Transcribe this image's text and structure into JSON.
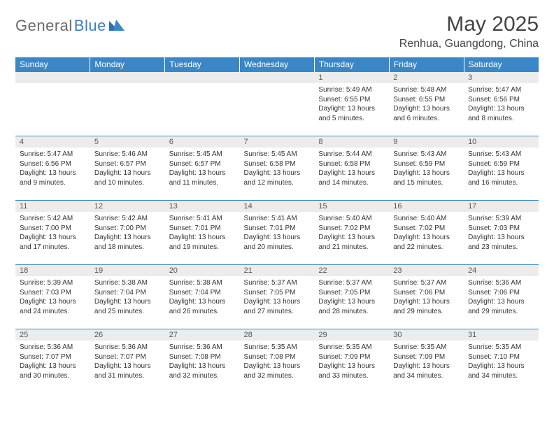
{
  "logo": {
    "general": "General",
    "blue": "Blue"
  },
  "title": "May 2025",
  "location": "Renhua, Guangdong, China",
  "colors": {
    "header_bg": "#3a87c8",
    "header_text": "#ffffff",
    "daynum_bg": "#ececec",
    "border": "#3a87c8",
    "logo_gray": "#6a6a6a",
    "logo_blue": "#3a7fc4"
  },
  "weekdays": [
    "Sunday",
    "Monday",
    "Tuesday",
    "Wednesday",
    "Thursday",
    "Friday",
    "Saturday"
  ],
  "weeks": [
    [
      {
        "n": "",
        "sr": "",
        "ss": "",
        "dl": ""
      },
      {
        "n": "",
        "sr": "",
        "ss": "",
        "dl": ""
      },
      {
        "n": "",
        "sr": "",
        "ss": "",
        "dl": ""
      },
      {
        "n": "",
        "sr": "",
        "ss": "",
        "dl": ""
      },
      {
        "n": "1",
        "sr": "Sunrise: 5:49 AM",
        "ss": "Sunset: 6:55 PM",
        "dl": "Daylight: 13 hours and 5 minutes."
      },
      {
        "n": "2",
        "sr": "Sunrise: 5:48 AM",
        "ss": "Sunset: 6:55 PM",
        "dl": "Daylight: 13 hours and 6 minutes."
      },
      {
        "n": "3",
        "sr": "Sunrise: 5:47 AM",
        "ss": "Sunset: 6:56 PM",
        "dl": "Daylight: 13 hours and 8 minutes."
      }
    ],
    [
      {
        "n": "4",
        "sr": "Sunrise: 5:47 AM",
        "ss": "Sunset: 6:56 PM",
        "dl": "Daylight: 13 hours and 9 minutes."
      },
      {
        "n": "5",
        "sr": "Sunrise: 5:46 AM",
        "ss": "Sunset: 6:57 PM",
        "dl": "Daylight: 13 hours and 10 minutes."
      },
      {
        "n": "6",
        "sr": "Sunrise: 5:45 AM",
        "ss": "Sunset: 6:57 PM",
        "dl": "Daylight: 13 hours and 11 minutes."
      },
      {
        "n": "7",
        "sr": "Sunrise: 5:45 AM",
        "ss": "Sunset: 6:58 PM",
        "dl": "Daylight: 13 hours and 12 minutes."
      },
      {
        "n": "8",
        "sr": "Sunrise: 5:44 AM",
        "ss": "Sunset: 6:58 PM",
        "dl": "Daylight: 13 hours and 14 minutes."
      },
      {
        "n": "9",
        "sr": "Sunrise: 5:43 AM",
        "ss": "Sunset: 6:59 PM",
        "dl": "Daylight: 13 hours and 15 minutes."
      },
      {
        "n": "10",
        "sr": "Sunrise: 5:43 AM",
        "ss": "Sunset: 6:59 PM",
        "dl": "Daylight: 13 hours and 16 minutes."
      }
    ],
    [
      {
        "n": "11",
        "sr": "Sunrise: 5:42 AM",
        "ss": "Sunset: 7:00 PM",
        "dl": "Daylight: 13 hours and 17 minutes."
      },
      {
        "n": "12",
        "sr": "Sunrise: 5:42 AM",
        "ss": "Sunset: 7:00 PM",
        "dl": "Daylight: 13 hours and 18 minutes."
      },
      {
        "n": "13",
        "sr": "Sunrise: 5:41 AM",
        "ss": "Sunset: 7:01 PM",
        "dl": "Daylight: 13 hours and 19 minutes."
      },
      {
        "n": "14",
        "sr": "Sunrise: 5:41 AM",
        "ss": "Sunset: 7:01 PM",
        "dl": "Daylight: 13 hours and 20 minutes."
      },
      {
        "n": "15",
        "sr": "Sunrise: 5:40 AM",
        "ss": "Sunset: 7:02 PM",
        "dl": "Daylight: 13 hours and 21 minutes."
      },
      {
        "n": "16",
        "sr": "Sunrise: 5:40 AM",
        "ss": "Sunset: 7:02 PM",
        "dl": "Daylight: 13 hours and 22 minutes."
      },
      {
        "n": "17",
        "sr": "Sunrise: 5:39 AM",
        "ss": "Sunset: 7:03 PM",
        "dl": "Daylight: 13 hours and 23 minutes."
      }
    ],
    [
      {
        "n": "18",
        "sr": "Sunrise: 5:39 AM",
        "ss": "Sunset: 7:03 PM",
        "dl": "Daylight: 13 hours and 24 minutes."
      },
      {
        "n": "19",
        "sr": "Sunrise: 5:38 AM",
        "ss": "Sunset: 7:04 PM",
        "dl": "Daylight: 13 hours and 25 minutes."
      },
      {
        "n": "20",
        "sr": "Sunrise: 5:38 AM",
        "ss": "Sunset: 7:04 PM",
        "dl": "Daylight: 13 hours and 26 minutes."
      },
      {
        "n": "21",
        "sr": "Sunrise: 5:37 AM",
        "ss": "Sunset: 7:05 PM",
        "dl": "Daylight: 13 hours and 27 minutes."
      },
      {
        "n": "22",
        "sr": "Sunrise: 5:37 AM",
        "ss": "Sunset: 7:05 PM",
        "dl": "Daylight: 13 hours and 28 minutes."
      },
      {
        "n": "23",
        "sr": "Sunrise: 5:37 AM",
        "ss": "Sunset: 7:06 PM",
        "dl": "Daylight: 13 hours and 29 minutes."
      },
      {
        "n": "24",
        "sr": "Sunrise: 5:36 AM",
        "ss": "Sunset: 7:06 PM",
        "dl": "Daylight: 13 hours and 29 minutes."
      }
    ],
    [
      {
        "n": "25",
        "sr": "Sunrise: 5:36 AM",
        "ss": "Sunset: 7:07 PM",
        "dl": "Daylight: 13 hours and 30 minutes."
      },
      {
        "n": "26",
        "sr": "Sunrise: 5:36 AM",
        "ss": "Sunset: 7:07 PM",
        "dl": "Daylight: 13 hours and 31 minutes."
      },
      {
        "n": "27",
        "sr": "Sunrise: 5:36 AM",
        "ss": "Sunset: 7:08 PM",
        "dl": "Daylight: 13 hours and 32 minutes."
      },
      {
        "n": "28",
        "sr": "Sunrise: 5:35 AM",
        "ss": "Sunset: 7:08 PM",
        "dl": "Daylight: 13 hours and 32 minutes."
      },
      {
        "n": "29",
        "sr": "Sunrise: 5:35 AM",
        "ss": "Sunset: 7:09 PM",
        "dl": "Daylight: 13 hours and 33 minutes."
      },
      {
        "n": "30",
        "sr": "Sunrise: 5:35 AM",
        "ss": "Sunset: 7:09 PM",
        "dl": "Daylight: 13 hours and 34 minutes."
      },
      {
        "n": "31",
        "sr": "Sunrise: 5:35 AM",
        "ss": "Sunset: 7:10 PM",
        "dl": "Daylight: 13 hours and 34 minutes."
      }
    ]
  ]
}
